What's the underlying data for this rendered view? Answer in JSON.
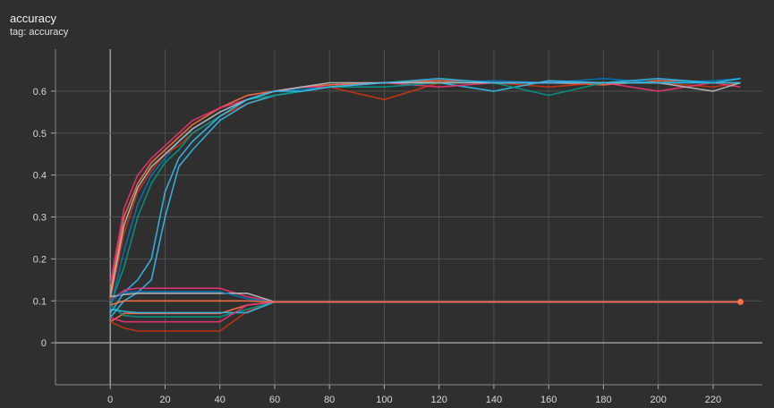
{
  "card": {
    "title": "accuracy",
    "subtitle": "tag: accuracy"
  },
  "chart_data": {
    "type": "line",
    "title": "accuracy",
    "xlim": [
      -20,
      238
    ],
    "ylim": [
      -0.1,
      0.7
    ],
    "xticks": [
      0,
      20,
      40,
      60,
      80,
      100,
      120,
      140,
      160,
      180,
      200,
      220
    ],
    "yticks": [
      0,
      0.1,
      0.2,
      0.3,
      0.4,
      0.5,
      0.6
    ],
    "grid": true,
    "legend": "none",
    "x": [
      0,
      5,
      10,
      15,
      20,
      25,
      30,
      40,
      50,
      60,
      70,
      80,
      100,
      120,
      140,
      160,
      180,
      200,
      220,
      230
    ],
    "colors": [
      "#ff7043",
      "#0077bb",
      "#cc3311",
      "#33bbee",
      "#ee3377",
      "#009988",
      "#bbbbbb"
    ],
    "series": [
      {
        "color": "#ff7043",
        "values": [
          0.12,
          0.3,
          0.38,
          0.43,
          0.46,
          0.49,
          0.52,
          0.56,
          0.59,
          0.6,
          0.61,
          0.615,
          0.62,
          0.625,
          0.62,
          0.62,
          0.615,
          0.625,
          0.62,
          0.62
        ]
      },
      {
        "color": "#0077bb",
        "values": [
          0.08,
          0.22,
          0.33,
          0.4,
          0.44,
          0.48,
          0.51,
          0.55,
          0.58,
          0.6,
          0.605,
          0.61,
          0.62,
          0.62,
          0.625,
          0.62,
          0.63,
          0.62,
          0.625,
          0.63
        ]
      },
      {
        "color": "#cc3311",
        "values": [
          0.1,
          0.26,
          0.36,
          0.41,
          0.45,
          0.47,
          0.5,
          0.54,
          0.57,
          0.59,
          0.6,
          0.61,
          0.58,
          0.62,
          0.62,
          0.61,
          0.62,
          0.62,
          0.61,
          0.62
        ]
      },
      {
        "color": "#33bbee",
        "values": [
          0.06,
          0.1,
          0.12,
          0.15,
          0.3,
          0.42,
          0.46,
          0.53,
          0.57,
          0.59,
          0.6,
          0.61,
          0.62,
          0.62,
          0.6,
          0.625,
          0.62,
          0.63,
          0.62,
          0.63
        ]
      },
      {
        "color": "#ee3377",
        "values": [
          0.14,
          0.32,
          0.4,
          0.44,
          0.47,
          0.5,
          0.53,
          0.56,
          0.58,
          0.6,
          0.61,
          0.61,
          0.62,
          0.61,
          0.62,
          0.62,
          0.62,
          0.6,
          0.62,
          0.61
        ]
      },
      {
        "color": "#009988",
        "values": [
          0.09,
          0.18,
          0.3,
          0.38,
          0.43,
          0.46,
          0.5,
          0.54,
          0.58,
          0.59,
          0.6,
          0.61,
          0.61,
          0.62,
          0.62,
          0.59,
          0.62,
          0.62,
          0.62,
          0.62
        ]
      },
      {
        "color": "#bbbbbb",
        "values": [
          0.11,
          0.28,
          0.37,
          0.42,
          0.45,
          0.48,
          0.51,
          0.55,
          0.58,
          0.6,
          0.61,
          0.62,
          0.62,
          0.62,
          0.62,
          0.62,
          0.62,
          0.62,
          0.6,
          0.62
        ]
      },
      {
        "color": "#33bbee",
        "values": [
          0.07,
          0.12,
          0.15,
          0.2,
          0.36,
          0.44,
          0.48,
          0.54,
          0.58,
          0.6,
          0.6,
          0.61,
          0.62,
          0.63,
          0.62,
          0.62,
          0.62,
          0.62,
          0.62,
          0.62
        ]
      },
      {
        "color": "#ff7043",
        "values": [
          0.05,
          0.07,
          0.07,
          0.07,
          0.07,
          0.07,
          0.07,
          0.07,
          0.09,
          0.0975,
          0.0975,
          0.0975,
          0.0975,
          0.0975,
          0.0975,
          0.0975,
          0.0975,
          0.0975,
          0.0975,
          0.0975
        ]
      },
      {
        "color": "#cc3311",
        "values": [
          0.05,
          0.035,
          0.028,
          0.028,
          0.028,
          0.028,
          0.028,
          0.028,
          0.075,
          0.0975,
          0.0975,
          0.0975,
          0.0975,
          0.0975,
          0.0975,
          0.0975,
          0.0975,
          0.0975,
          0.0975,
          0.0975
        ]
      },
      {
        "color": "#ee3377",
        "values": [
          0.1,
          0.125,
          0.13,
          0.13,
          0.13,
          0.13,
          0.13,
          0.13,
          0.11,
          0.0975,
          0.0975,
          0.0975,
          0.0975,
          0.0975,
          0.0975,
          0.0975,
          0.0975,
          0.0975,
          0.0975,
          0.0975
        ]
      },
      {
        "color": "#009988",
        "values": [
          0.09,
          0.065,
          0.062,
          0.062,
          0.062,
          0.062,
          0.062,
          0.062,
          0.08,
          0.0975,
          0.0975,
          0.0975,
          0.0975,
          0.0975,
          0.0975,
          0.0975,
          0.0975,
          0.0975,
          0.0975,
          0.0975
        ]
      },
      {
        "color": "#33bbee",
        "values": [
          0.08,
          0.075,
          0.072,
          0.072,
          0.072,
          0.072,
          0.072,
          0.072,
          0.072,
          0.0975,
          0.0975,
          0.0975,
          0.0975,
          0.0975,
          0.0975,
          0.0975,
          0.0975,
          0.0975,
          0.0975,
          0.0975
        ]
      },
      {
        "color": "#bbbbbb",
        "values": [
          0.11,
          0.115,
          0.118,
          0.118,
          0.118,
          0.118,
          0.118,
          0.118,
          0.118,
          0.0975,
          0.0975,
          0.0975,
          0.0975,
          0.0975,
          0.0975,
          0.0975,
          0.0975,
          0.0975,
          0.0975,
          0.0975
        ]
      },
      {
        "color": "#0077bb",
        "values": [
          0.1,
          0.12,
          0.122,
          0.122,
          0.122,
          0.122,
          0.122,
          0.122,
          0.105,
          0.0975,
          0.0975,
          0.0975,
          0.0975,
          0.0975,
          0.0975,
          0.0975,
          0.0975,
          0.0975,
          0.0975,
          0.0975
        ]
      },
      {
        "color": "#ee3377",
        "values": [
          0.06,
          0.05,
          0.05,
          0.05,
          0.05,
          0.05,
          0.05,
          0.05,
          0.09,
          0.0975,
          0.0975,
          0.0975,
          0.0975,
          0.0975,
          0.0975,
          0.0975,
          0.0975,
          0.0975,
          0.0975,
          0.0975
        ]
      },
      {
        "color": "#ff7043",
        "values": [
          0.09,
          0.1,
          0.1,
          0.1,
          0.1,
          0.1,
          0.1,
          0.1,
          0.1,
          0.0975,
          0.0975,
          0.0975,
          0.0975,
          0.0975,
          0.0975,
          0.0975,
          0.0975,
          0.0975,
          0.0975,
          0.0975
        ]
      }
    ],
    "highlight": {
      "x": 230,
      "y": 0.0975,
      "color": "#ff7043"
    }
  }
}
